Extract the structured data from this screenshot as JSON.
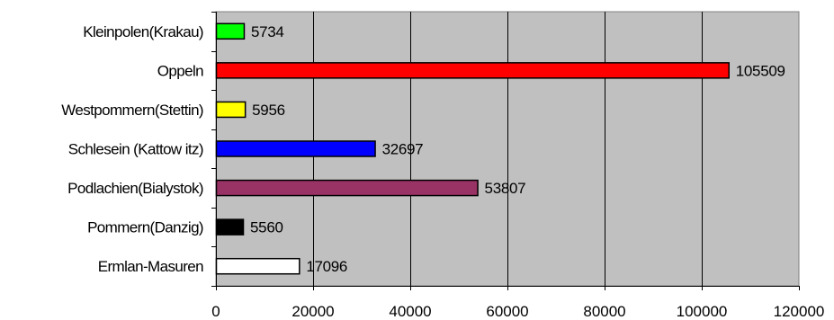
{
  "chart_data": {
    "type": "bar",
    "orientation": "horizontal",
    "title": "",
    "xlabel": "",
    "ylabel": "",
    "xlim": [
      0,
      120000
    ],
    "grid": true,
    "legend": "none",
    "plot_background": "#c0c0c0",
    "categories": [
      "Kleinpolen(Krakau)",
      "Oppeln",
      "Westpommern(Stettin)",
      "Schlesein (Kattow itz)",
      "Podlachien(Bialystok)",
      "Pommern(Danzig)",
      "Ermlan-Masuren"
    ],
    "values": [
      5734,
      105509,
      5956,
      32697,
      53807,
      5560,
      17096
    ],
    "value_labels": [
      "5734",
      "105509",
      "5956",
      "32697",
      "53807",
      "5560",
      "17096"
    ],
    "colors": [
      "#00ff00",
      "#ff0000",
      "#ffff00",
      "#0000ff",
      "#993366",
      "#000000",
      "#ffffff"
    ],
    "x_ticks": [
      0,
      20000,
      40000,
      60000,
      80000,
      100000,
      120000
    ],
    "x_tick_labels": [
      "0",
      "20000",
      "40000",
      "60000",
      "80000",
      "100000",
      "120000"
    ]
  }
}
